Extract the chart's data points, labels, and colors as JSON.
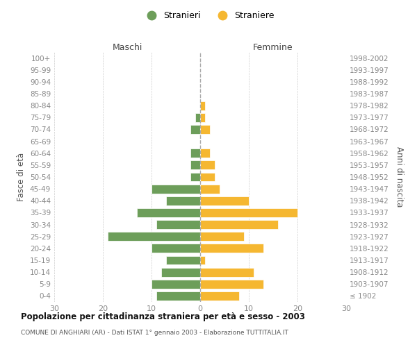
{
  "age_groups": [
    "100+",
    "95-99",
    "90-94",
    "85-89",
    "80-84",
    "75-79",
    "70-74",
    "65-69",
    "60-64",
    "55-59",
    "50-54",
    "45-49",
    "40-44",
    "35-39",
    "30-34",
    "25-29",
    "20-24",
    "15-19",
    "10-14",
    "5-9",
    "0-4"
  ],
  "birth_years": [
    "≤ 1902",
    "1903-1907",
    "1908-1912",
    "1913-1917",
    "1918-1922",
    "1923-1927",
    "1928-1932",
    "1933-1937",
    "1938-1942",
    "1943-1947",
    "1948-1952",
    "1953-1957",
    "1958-1962",
    "1963-1967",
    "1968-1972",
    "1973-1977",
    "1978-1982",
    "1983-1987",
    "1988-1992",
    "1993-1997",
    "1998-2002"
  ],
  "males": [
    0,
    0,
    0,
    0,
    0,
    1,
    2,
    0,
    2,
    2,
    2,
    10,
    7,
    13,
    9,
    19,
    10,
    7,
    8,
    10,
    9
  ],
  "females": [
    0,
    0,
    0,
    0,
    1,
    1,
    2,
    0,
    2,
    3,
    3,
    4,
    10,
    20,
    16,
    9,
    13,
    1,
    11,
    13,
    8
  ],
  "male_color": "#6d9e5a",
  "female_color": "#f5b731",
  "grid_color": "#cccccc",
  "axis_label_color": "#888888",
  "bar_edge_color": "white",
  "title": "Popolazione per cittadinanza straniera per età e sesso - 2003",
  "subtitle": "COMUNE DI ANGHIARI (AR) - Dati ISTAT 1° gennaio 2003 - Elaborazione TUTTITALIA.IT",
  "legend_stranieri": "Stranieri",
  "legend_straniere": "Straniere",
  "xlabel_left": "Maschi",
  "xlabel_right": "Femmine",
  "ylabel_left": "Fasce di età",
  "ylabel_right": "Anni di nascita",
  "xlim": 30,
  "background_color": "#ffffff"
}
